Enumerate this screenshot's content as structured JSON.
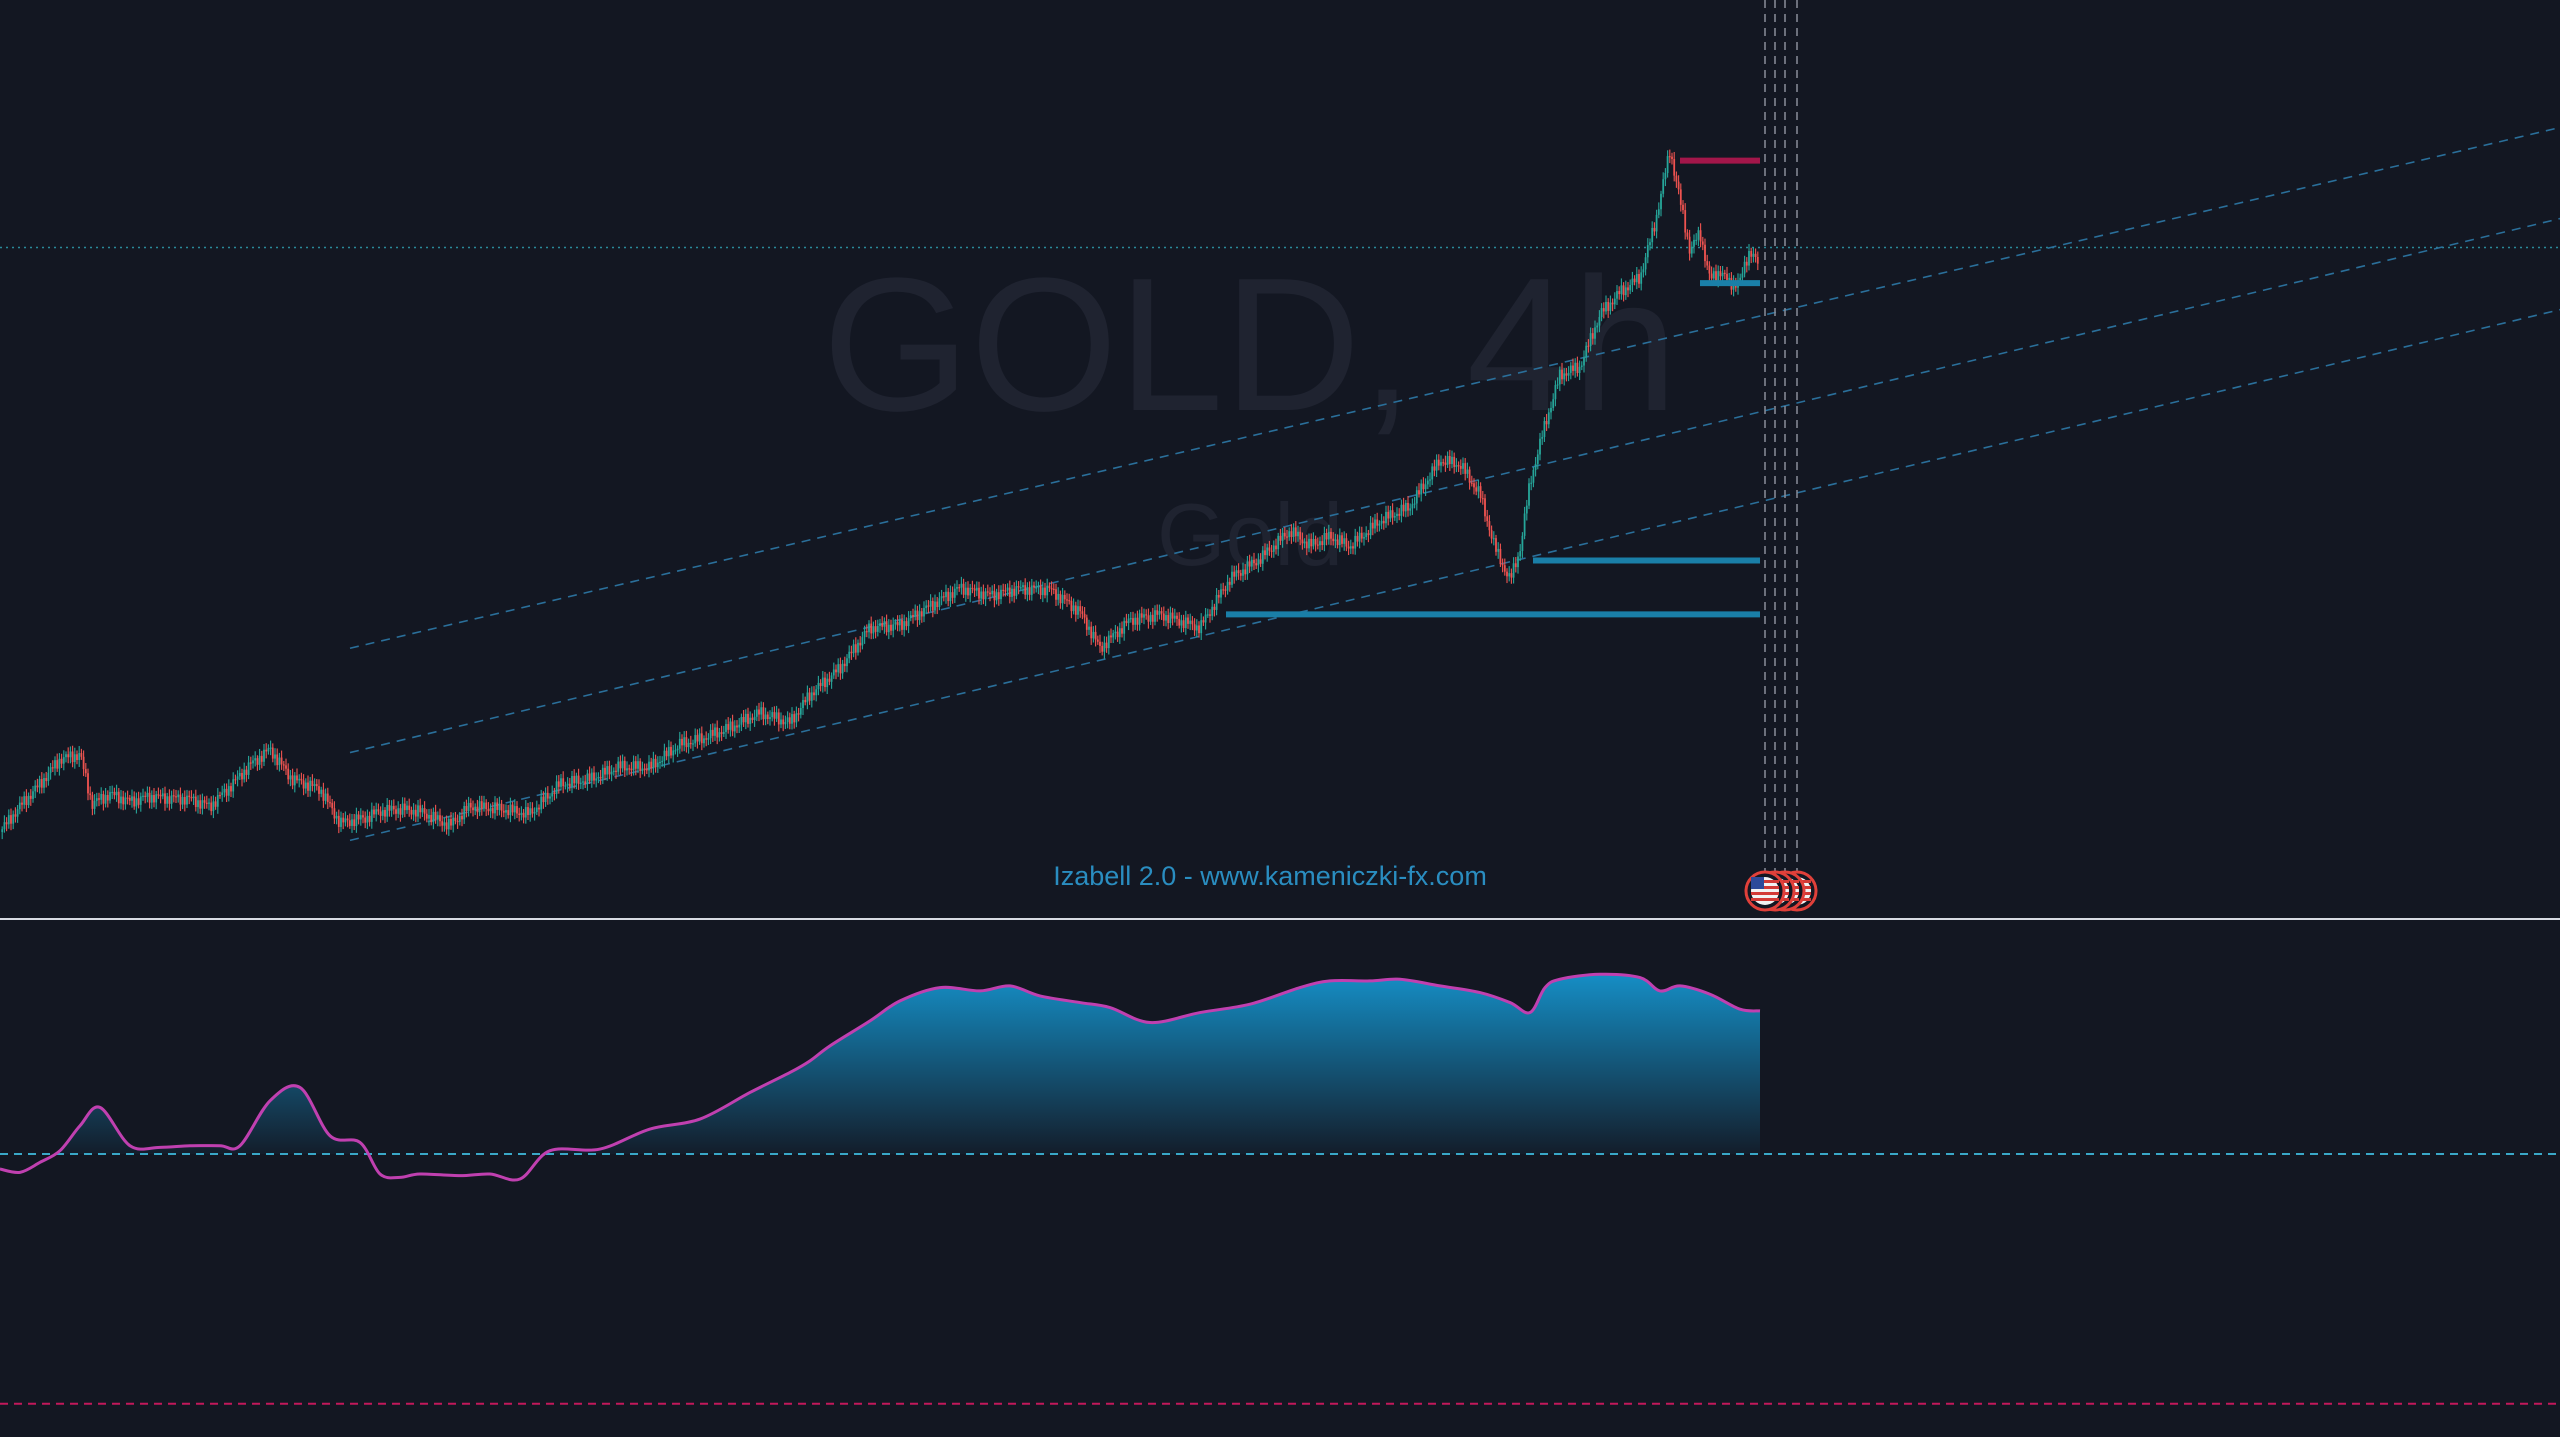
{
  "watermark": {
    "symbol_timeframe": "GOLD, 4h",
    "description": "Gold"
  },
  "indicator": {
    "label": "Izabell 2.0 - www.kameniczki-fx.com"
  },
  "colors": {
    "background": "#131722",
    "candle_up": "#26a69a",
    "candle_down": "#ef5350",
    "support_level": "#1a7fa8",
    "resistance_level": "#a3164a",
    "channel": "#2a6f9a",
    "oscillator_line": "#c040b0",
    "oscillator_fill_top": "#1590c8",
    "oscillator_threshold": "#3aa8c8",
    "lower_threshold": "#c2185b",
    "event_flag": "#e0403a"
  },
  "events": {
    "flag_icon": "us-flag-icon",
    "count": 4
  },
  "chart_data": [
    {
      "type": "candlestick",
      "series": [
        {
          "name": "",
          "x": [
            0,
            20,
            40,
            60,
            80,
            92,
            110,
            130,
            150,
            170,
            190,
            210,
            230,
            250,
            270,
            292,
            320,
            340,
            365,
            380,
            400,
            420,
            450,
            470,
            500,
            530,
            560,
            590,
            620,
            650,
            680,
            700,
            730,
            760,
            790,
            810,
            840,
            870,
            900,
            930,
            960,
            990,
            1020,
            1050,
            1080,
            1100,
            1130,
            1160,
            1200,
            1230,
            1260,
            1290,
            1310,
            1330,
            1350,
            1380,
            1410,
            1440,
            1460,
            1480,
            1495,
            1510,
            1520,
            1530,
            1545,
            1560,
            1580,
            1600,
            1620,
            1640,
            1655,
            1670,
            1680,
            1690,
            1700,
            1710,
            1720,
            1730,
            1740,
            1750,
            1760
          ],
          "close": [
            -0.5,
            2.6,
            5.3,
            8.3,
            8.9,
            2.9,
            4.1,
            3.2,
            3.8,
            3.6,
            3.5,
            2.6,
            5.0,
            7.6,
            9.5,
            5.9,
            4.7,
            0.6,
            1.2,
            2.0,
            2.3,
            2.0,
            0.3,
            2.6,
            2.3,
            1.7,
            5.3,
            5.9,
            7.4,
            7.3,
            10.1,
            10.7,
            12.1,
            13.9,
            12.7,
            16.1,
            19.3,
            24.2,
            24.5,
            26.8,
            29.0,
            28.1,
            28.9,
            28.8,
            26.1,
            21.7,
            25.1,
            25.8,
            24.2,
            30.1,
            32.5,
            35.9,
            34.1,
            35.2,
            34.0,
            37.1,
            38.8,
            44.4,
            43.9,
            40.3,
            33.8,
            29.9,
            33.6,
            41.7,
            48.7,
            54.7,
            55.7,
            62.0,
            64.7,
            66.5,
            73.0,
            81.9,
            75.8,
            69.7,
            71.9,
            66.2,
            67.3,
            65.7,
            66.0,
            69.9,
            67.6
          ]
        }
      ],
      "levels": [
        {
          "name": "",
          "value": 80.6,
          "role": "resistance"
        },
        {
          "name": "",
          "value": 65.8,
          "role": "support"
        },
        {
          "name": "",
          "value": 32.3,
          "role": "support"
        },
        {
          "name": "",
          "value": 25.8,
          "role": "support"
        }
      ],
      "reference_line": {
        "value": 70.1,
        "style": "dotted"
      },
      "channel_lines": [
        {
          "from": [
            350,
            21.7
          ],
          "to": [
            2560,
            84.6
          ]
        },
        {
          "from": [
            350,
            9.1
          ],
          "to": [
            2560,
            73.6
          ]
        },
        {
          "from": [
            350,
            -1.5
          ],
          "to": [
            2560,
            62.6
          ]
        }
      ],
      "event_markers_x": [
        1765,
        1775,
        1785,
        1797
      ],
      "xlim": [
        0,
        2560
      ],
      "ylim": [
        -11,
        100
      ],
      "grid": false,
      "xlabel": "",
      "ylabel": ""
    },
    {
      "type": "area",
      "series": [
        {
          "name": "",
          "x": [
            0,
            20,
            40,
            60,
            80,
            100,
            130,
            160,
            190,
            220,
            240,
            270,
            300,
            330,
            360,
            380,
            400,
            420,
            460,
            490,
            520,
            550,
            600,
            650,
            700,
            750,
            790,
            810,
            830,
            870,
            900,
            940,
            980,
            1010,
            1040,
            1080,
            1110,
            1150,
            1200,
            1250,
            1300,
            1330,
            1370,
            1400,
            1440,
            1480,
            1510,
            1530,
            1545,
            1560,
            1600,
            1640,
            1660,
            1680,
            1710,
            1740,
            1760
          ],
          "values": [
            -9.0,
            -11.0,
            -5.0,
            2.0,
            17.0,
            28.0,
            5.0,
            4.0,
            5.0,
            5.0,
            5.0,
            32.0,
            40.0,
            11.0,
            7.0,
            -12.0,
            -14.0,
            -12.0,
            -13.0,
            -12.0,
            -15.0,
            2.0,
            3.0,
            15.0,
            21.0,
            37.0,
            49.0,
            56.0,
            65.0,
            80.0,
            92.0,
            100.0,
            98.0,
            101.0,
            95.0,
            91.0,
            88.0,
            79.0,
            85.0,
            90.0,
            100.0,
            104.0,
            104.0,
            105.0,
            101.0,
            97.0,
            91.0,
            85.0,
            100.0,
            105.0,
            108.0,
            106.0,
            98.0,
            101.0,
            96.0,
            87.0,
            86.0
          ]
        }
      ],
      "threshold_upper": 0,
      "threshold_lower": -150,
      "ylim": [
        -170,
        140
      ],
      "xlim": [
        0,
        2560
      ],
      "grid": false,
      "xlabel": "",
      "ylabel": ""
    }
  ]
}
